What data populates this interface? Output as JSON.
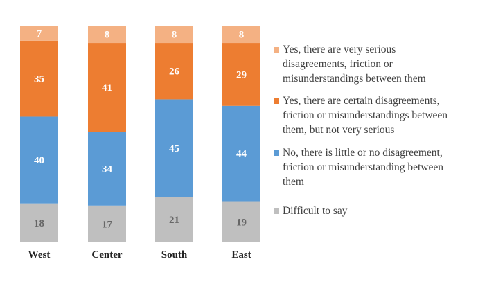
{
  "chart_data": {
    "type": "bar",
    "stacked": true,
    "percent_stacked": true,
    "categories": [
      "West",
      "Center",
      "South",
      "East"
    ],
    "series": [
      {
        "name": "Difficult to say",
        "color": "#bfbfbf",
        "label_color": "#666666",
        "values": [
          18,
          17,
          21,
          19
        ]
      },
      {
        "name": "No, there is little or no disagreement, friction or misunderstanding between them",
        "color": "#5b9bd5",
        "label_color": "#ffffff",
        "values": [
          40,
          34,
          45,
          44
        ]
      },
      {
        "name": "Yes, there are certain disagreements, friction or misunderstandings between them, but not very serious",
        "color": "#ed7d31",
        "label_color": "#ffffff",
        "values": [
          35,
          41,
          26,
          29
        ]
      },
      {
        "name": "Yes, there are very serious disagreements, friction or misunderstandings between them",
        "color": "#f4b183",
        "label_color": "#ffffff",
        "values": [
          7,
          8,
          8,
          8
        ]
      }
    ],
    "legend": {
      "position": "right",
      "order": [
        3,
        2,
        1,
        0
      ],
      "lines": [
        [
          "Yes, there are very serious",
          "disagreements, friction or",
          "misunderstandings between them"
        ],
        [
          "Yes, there are certain disagreements,",
          "friction or misunderstandings between",
          "them, but not very serious"
        ],
        [
          "No, there is little or no disagreement,",
          "friction or misunderstanding between",
          "them"
        ],
        [
          "Difficult to say"
        ]
      ]
    },
    "grid": false,
    "title": "",
    "xlabel": "",
    "ylabel": ""
  }
}
